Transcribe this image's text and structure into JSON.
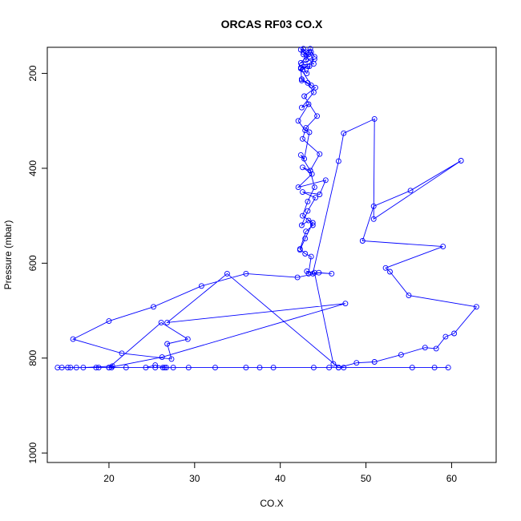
{
  "chart_data": {
    "type": "line",
    "title": "ORCAS RF03 CO.X",
    "xlabel": "CO.X",
    "ylabel": "Pressure (mbar)",
    "xlim": [
      12.8,
      65.2
    ],
    "ylim": [
      1020,
      145
    ],
    "y_reversed": true,
    "x_ticks": [
      20,
      30,
      40,
      50,
      60
    ],
    "y_ticks": [
      200,
      400,
      600,
      800,
      1000
    ],
    "grid": false,
    "color": "#0000ff",
    "series": [
      {
        "x": [
          14.5,
          16.2,
          18.8,
          20.3,
          20.4,
          17.0,
          15.2,
          14.0,
          15.5,
          18.5,
          20.0,
          22.0,
          25.4,
          26.3,
          27.5,
          29.3,
          26.5,
          24.3,
          25.4,
          26.7,
          32.4,
          36.0,
          37.6,
          39.2,
          43.9,
          45.7,
          46.8,
          55.4,
          58.0,
          59.6,
          47.4,
          46.2,
          44.0,
          46.0,
          44.5,
          42.0,
          36.0,
          30.8,
          25.2,
          20.0,
          15.8,
          21.5,
          27.3,
          26.8,
          29.2,
          26.1,
          20.0,
          26.2,
          47.6,
          26.8,
          33.8,
          46.8,
          48.9,
          51.0,
          54.1,
          56.9,
          58.2,
          59.3,
          60.3,
          62.9,
          55.0,
          52.8,
          52.3,
          59.0,
          49.6,
          50.9,
          55.2,
          61.1,
          50.9,
          51.0,
          47.4,
          46.8,
          43.8,
          43.1,
          43.3,
          43.6,
          42.9,
          42.3,
          43.0,
          43.8,
          43.3,
          42.5,
          43.2,
          44.1,
          42.6,
          44.6,
          45.3,
          42.1,
          43.7,
          42.6,
          43.5,
          42.4,
          42.8,
          43.4,
          42.9,
          42.1,
          43.3,
          42.5,
          43.9,
          43.2,
          42.5,
          43.6,
          42.4,
          43.2,
          42.6,
          44.0,
          42.4,
          43.3,
          42.7,
          43.4,
          42.4,
          42.7,
          43.0,
          43.5,
          44.0,
          43.6,
          43.0,
          42.7,
          43.9,
          42.5,
          43.1,
          43.4,
          42.4,
          42.5,
          44.1,
          42.8,
          44.3,
          43.0,
          42.6,
          44.6,
          43.5,
          44.0,
          43.2,
          42.6,
          43.8,
          42.9,
          42.3
        ],
        "y": [
          820,
          820,
          820,
          820,
          817,
          820,
          820,
          820,
          820,
          820,
          820,
          820,
          820,
          820,
          820,
          820,
          820,
          820,
          815,
          820,
          820,
          820,
          820,
          820,
          820,
          820,
          820,
          820,
          820,
          820,
          820,
          812,
          620,
          622,
          620,
          630,
          622,
          648,
          692,
          722,
          760,
          790,
          802,
          770,
          760,
          725,
          820,
          798,
          685,
          725,
          622,
          820,
          810,
          808,
          793,
          778,
          780,
          755,
          748,
          692,
          668,
          618,
          610,
          565,
          553,
          480,
          447,
          384,
          507,
          296,
          326,
          385,
          622,
          617,
          622,
          586,
          580,
          570,
          533,
          520,
          510,
          520,
          490,
          462,
          450,
          455,
          425,
          440,
          412,
          398,
          405,
          372,
          380,
          324,
          320,
          300,
          265,
          272,
          240,
          220,
          212,
          225,
          190,
          185,
          192,
          170,
          178,
          160,
          155,
          165,
          150,
          148,
          155,
          148,
          165,
          155,
          172,
          160,
          180,
          182,
          200,
          185,
          188,
          215,
          230,
          248,
          290,
          315,
          338,
          370,
          405,
          440,
          470,
          500,
          515,
          548,
          572
        ]
      }
    ]
  }
}
